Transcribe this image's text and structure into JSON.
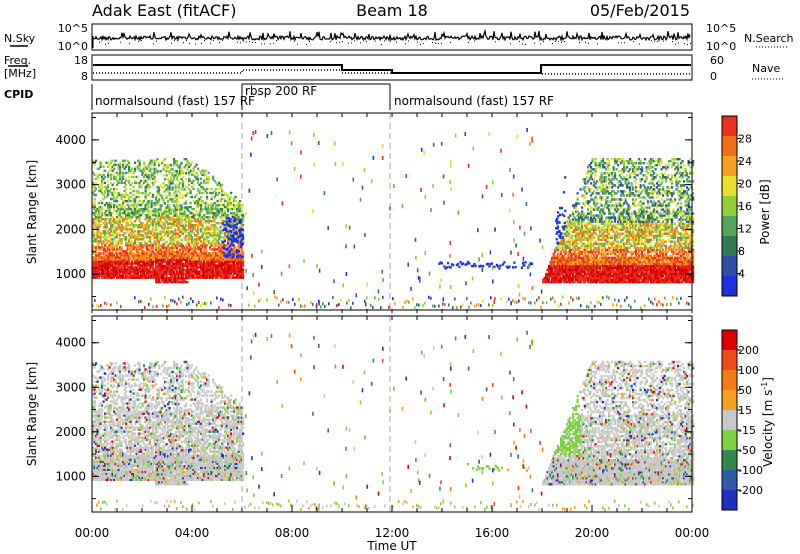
{
  "header": {
    "title_left": "Adak East (fitACF)",
    "title_center": "Beam 18",
    "title_right": "05/Feb/2015"
  },
  "panels": {
    "nsky": {
      "label": "N.Sky",
      "ticks_left": [
        "10^5",
        "10^0"
      ],
      "ticks_right": [
        "10^5",
        "10^0"
      ],
      "right_label": "N.Search"
    },
    "freq": {
      "label_line1": "Freq.",
      "label_line2": "[MHz]",
      "ticks_left": [
        "18",
        "8"
      ],
      "ticks_right": [
        "60",
        "0"
      ],
      "right_label": "Nave"
    },
    "cpid": {
      "label": "CPID",
      "segments": [
        "normalsound (fast) 157 RF",
        "rbsp 200 RF",
        "normalsound (fast) 157 RF"
      ]
    }
  },
  "x_axis": {
    "label": "Time UT",
    "ticks": [
      "00:00",
      "04:00",
      "08:00",
      "12:00",
      "16:00",
      "20:00",
      "00:00"
    ]
  },
  "chart_data": [
    {
      "type": "heatmap",
      "name": "power",
      "ylabel": "Slant Range [km]",
      "yticks": [
        "1000",
        "2000",
        "3000",
        "4000"
      ],
      "ylim": [
        200,
        4600
      ],
      "xlim_hours": [
        0,
        24
      ],
      "colorbar": {
        "label": "Power [dB]",
        "ticks": [
          "4",
          "8",
          "12",
          "16",
          "20",
          "24",
          "28"
        ],
        "colors": [
          "#1f2fe0",
          "#2c4fa8",
          "#2e7d52",
          "#56a35a",
          "#8fcf3a",
          "#e8e02a",
          "#f5a020",
          "#f07018",
          "#e83020",
          "#d80000"
        ]
      }
    },
    {
      "type": "heatmap",
      "name": "velocity",
      "ylabel": "Slant Range [km]",
      "yticks": [
        "1000",
        "2000",
        "3000",
        "4000"
      ],
      "ylim": [
        200,
        4600
      ],
      "xlim_hours": [
        0,
        24
      ],
      "colorbar": {
        "label": "Velocity [m s^-1]",
        "ticks": [
          "200",
          "100",
          "50",
          "15",
          "-15",
          "-50",
          "-100",
          "-200"
        ],
        "colors": [
          "#1f2fc0",
          "#2f5aa8",
          "#2f8a4f",
          "#7ed040",
          "#c8c8c8",
          "#f6a020",
          "#f57a18",
          "#ef4a18",
          "#e00000"
        ]
      }
    }
  ]
}
